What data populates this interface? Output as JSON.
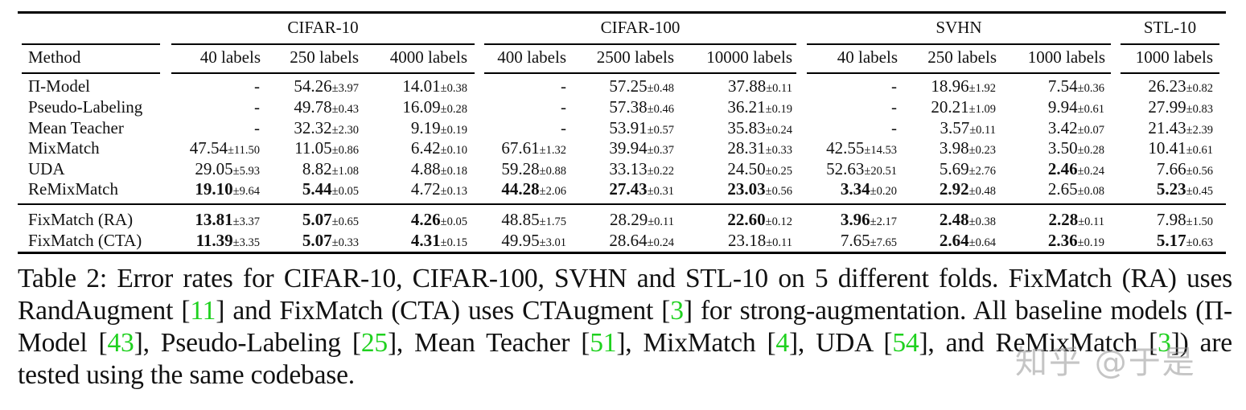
{
  "table": {
    "groups": [
      {
        "label": "CIFAR-10"
      },
      {
        "label": "CIFAR-100"
      },
      {
        "label": "SVHN"
      },
      {
        "label": "STL-10"
      }
    ],
    "method_header": "Method",
    "columns": [
      "40 labels",
      "250 labels",
      "4000 labels",
      "400 labels",
      "2500 labels",
      "10000 labels",
      "40 labels",
      "250 labels",
      "1000 labels",
      "1000 labels"
    ],
    "rows": [
      {
        "method": "Π-Model",
        "cells": [
          {
            "v": "-",
            "pm": "",
            "bold": false
          },
          {
            "v": "54.26",
            "pm": "±3.97",
            "bold": false
          },
          {
            "v": "14.01",
            "pm": "±0.38",
            "bold": false
          },
          {
            "v": "-",
            "pm": "",
            "bold": false
          },
          {
            "v": "57.25",
            "pm": "±0.48",
            "bold": false
          },
          {
            "v": "37.88",
            "pm": "±0.11",
            "bold": false
          },
          {
            "v": "-",
            "pm": "",
            "bold": false
          },
          {
            "v": "18.96",
            "pm": "±1.92",
            "bold": false
          },
          {
            "v": "7.54",
            "pm": "±0.36",
            "bold": false
          },
          {
            "v": "26.23",
            "pm": "±0.82",
            "bold": false
          }
        ]
      },
      {
        "method": "Pseudo-Labeling",
        "cells": [
          {
            "v": "-",
            "pm": "",
            "bold": false
          },
          {
            "v": "49.78",
            "pm": "±0.43",
            "bold": false
          },
          {
            "v": "16.09",
            "pm": "±0.28",
            "bold": false
          },
          {
            "v": "-",
            "pm": "",
            "bold": false
          },
          {
            "v": "57.38",
            "pm": "±0.46",
            "bold": false
          },
          {
            "v": "36.21",
            "pm": "±0.19",
            "bold": false
          },
          {
            "v": "-",
            "pm": "",
            "bold": false
          },
          {
            "v": "20.21",
            "pm": "±1.09",
            "bold": false
          },
          {
            "v": "9.94",
            "pm": "±0.61",
            "bold": false
          },
          {
            "v": "27.99",
            "pm": "±0.83",
            "bold": false
          }
        ]
      },
      {
        "method": "Mean Teacher",
        "cells": [
          {
            "v": "-",
            "pm": "",
            "bold": false
          },
          {
            "v": "32.32",
            "pm": "±2.30",
            "bold": false
          },
          {
            "v": "9.19",
            "pm": "±0.19",
            "bold": false
          },
          {
            "v": "-",
            "pm": "",
            "bold": false
          },
          {
            "v": "53.91",
            "pm": "±0.57",
            "bold": false
          },
          {
            "v": "35.83",
            "pm": "±0.24",
            "bold": false
          },
          {
            "v": "-",
            "pm": "",
            "bold": false
          },
          {
            "v": "3.57",
            "pm": "±0.11",
            "bold": false
          },
          {
            "v": "3.42",
            "pm": "±0.07",
            "bold": false
          },
          {
            "v": "21.43",
            "pm": "±2.39",
            "bold": false
          }
        ]
      },
      {
        "method": "MixMatch",
        "cells": [
          {
            "v": "47.54",
            "pm": "±11.50",
            "bold": false
          },
          {
            "v": "11.05",
            "pm": "±0.86",
            "bold": false
          },
          {
            "v": "6.42",
            "pm": "±0.10",
            "bold": false
          },
          {
            "v": "67.61",
            "pm": "±1.32",
            "bold": false
          },
          {
            "v": "39.94",
            "pm": "±0.37",
            "bold": false
          },
          {
            "v": "28.31",
            "pm": "±0.33",
            "bold": false
          },
          {
            "v": "42.55",
            "pm": "±14.53",
            "bold": false
          },
          {
            "v": "3.98",
            "pm": "±0.23",
            "bold": false
          },
          {
            "v": "3.50",
            "pm": "±0.28",
            "bold": false
          },
          {
            "v": "10.41",
            "pm": "±0.61",
            "bold": false
          }
        ]
      },
      {
        "method": "UDA",
        "cells": [
          {
            "v": "29.05",
            "pm": "±5.93",
            "bold": false
          },
          {
            "v": "8.82",
            "pm": "±1.08",
            "bold": false
          },
          {
            "v": "4.88",
            "pm": "±0.18",
            "bold": false
          },
          {
            "v": "59.28",
            "pm": "±0.88",
            "bold": false
          },
          {
            "v": "33.13",
            "pm": "±0.22",
            "bold": false
          },
          {
            "v": "24.50",
            "pm": "±0.25",
            "bold": false
          },
          {
            "v": "52.63",
            "pm": "±20.51",
            "bold": false
          },
          {
            "v": "5.69",
            "pm": "±2.76",
            "bold": false
          },
          {
            "v": "2.46",
            "pm": "±0.24",
            "bold": true
          },
          {
            "v": "7.66",
            "pm": "±0.56",
            "bold": false
          }
        ]
      },
      {
        "method": "ReMixMatch",
        "cells": [
          {
            "v": "19.10",
            "pm": "±9.64",
            "bold": true
          },
          {
            "v": "5.44",
            "pm": "±0.05",
            "bold": true
          },
          {
            "v": "4.72",
            "pm": "±0.13",
            "bold": false
          },
          {
            "v": "44.28",
            "pm": "±2.06",
            "bold": true
          },
          {
            "v": "27.43",
            "pm": "±0.31",
            "bold": true
          },
          {
            "v": "23.03",
            "pm": "±0.56",
            "bold": true
          },
          {
            "v": "3.34",
            "pm": "±0.20",
            "bold": true
          },
          {
            "v": "2.92",
            "pm": "±0.48",
            "bold": true
          },
          {
            "v": "2.65",
            "pm": "±0.08",
            "bold": false
          },
          {
            "v": "5.23",
            "pm": "±0.45",
            "bold": true
          }
        ]
      },
      {
        "method": "FixMatch (RA)",
        "cells": [
          {
            "v": "13.81",
            "pm": "±3.37",
            "bold": true
          },
          {
            "v": "5.07",
            "pm": "±0.65",
            "bold": true
          },
          {
            "v": "4.26",
            "pm": "±0.05",
            "bold": true
          },
          {
            "v": "48.85",
            "pm": "±1.75",
            "bold": false
          },
          {
            "v": "28.29",
            "pm": "±0.11",
            "bold": false
          },
          {
            "v": "22.60",
            "pm": "±0.12",
            "bold": true
          },
          {
            "v": "3.96",
            "pm": "±2.17",
            "bold": true
          },
          {
            "v": "2.48",
            "pm": "±0.38",
            "bold": true
          },
          {
            "v": "2.28",
            "pm": "±0.11",
            "bold": true
          },
          {
            "v": "7.98",
            "pm": "±1.50",
            "bold": false
          }
        ]
      },
      {
        "method": "FixMatch (CTA)",
        "cells": [
          {
            "v": "11.39",
            "pm": "±3.35",
            "bold": true
          },
          {
            "v": "5.07",
            "pm": "±0.33",
            "bold": true
          },
          {
            "v": "4.31",
            "pm": "±0.15",
            "bold": true
          },
          {
            "v": "49.95",
            "pm": "±3.01",
            "bold": false
          },
          {
            "v": "28.64",
            "pm": "±0.24",
            "bold": false
          },
          {
            "v": "23.18",
            "pm": "±0.11",
            "bold": false
          },
          {
            "v": "7.65",
            "pm": "±7.65",
            "bold": false
          },
          {
            "v": "2.64",
            "pm": "±0.64",
            "bold": true
          },
          {
            "v": "2.36",
            "pm": "±0.19",
            "bold": true
          },
          {
            "v": "5.17",
            "pm": "±0.63",
            "bold": true
          }
        ]
      }
    ]
  },
  "caption": {
    "parts": [
      {
        "t": "Table 2: Error rates for CIFAR-10, CIFAR-100, SVHN and STL-10 on 5 different folds. FixMatch (RA) uses RandAugment ",
        "cite": false
      },
      {
        "t": "[",
        "cite": false
      },
      {
        "t": "11",
        "cite": true
      },
      {
        "t": "] and FixMatch (CTA) uses CTAugment [",
        "cite": false
      },
      {
        "t": "3",
        "cite": true
      },
      {
        "t": "] for strong-augmentation. All baseline models (Π-Model [",
        "cite": false
      },
      {
        "t": "43",
        "cite": true
      },
      {
        "t": "], Pseudo-Labeling [",
        "cite": false
      },
      {
        "t": "25",
        "cite": true
      },
      {
        "t": "], Mean Teacher [",
        "cite": false
      },
      {
        "t": "51",
        "cite": true
      },
      {
        "t": "], MixMatch [",
        "cite": false
      },
      {
        "t": "4",
        "cite": true
      },
      {
        "t": "], UDA [",
        "cite": false
      },
      {
        "t": "54",
        "cite": true
      },
      {
        "t": "], and ReMixMatch [",
        "cite": false
      },
      {
        "t": "3",
        "cite": true
      },
      {
        "t": "]) are tested using the same codebase.",
        "cite": false
      }
    ],
    "cite_color": "#1fd11f"
  },
  "watermark": "知乎 @于是"
}
